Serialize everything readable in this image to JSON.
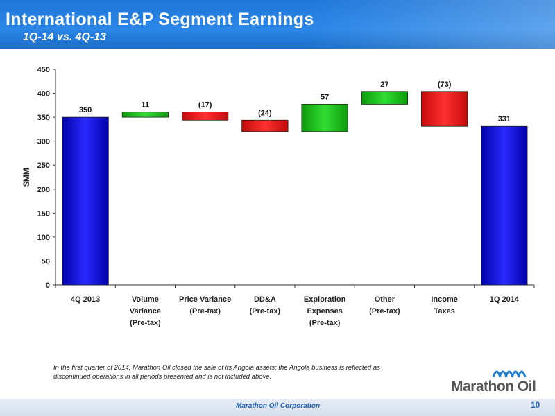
{
  "header": {
    "title": "International E&P Segment Earnings",
    "subtitle": "1Q-14 vs. 4Q-13"
  },
  "chart_data": {
    "type": "waterfall",
    "ylabel": "$MM",
    "ylim": [
      0,
      450
    ],
    "yticks": [
      0,
      50,
      100,
      150,
      200,
      250,
      300,
      350,
      400,
      450
    ],
    "grid": false,
    "categories": [
      [
        "4Q 2013"
      ],
      [
        "Volume",
        "Variance",
        "(Pre-tax)"
      ],
      [
        "Price Variance",
        "(Pre-tax)"
      ],
      [
        "DD&A",
        "(Pre-tax)"
      ],
      [
        "Exploration",
        "Expenses",
        "(Pre-tax)"
      ],
      [
        "Other",
        "(Pre-tax)"
      ],
      [
        "Income",
        "Taxes"
      ],
      [
        "1Q 2014"
      ]
    ],
    "bars": [
      {
        "kind": "total",
        "start": 0,
        "end": 350,
        "label": "350"
      },
      {
        "kind": "increase",
        "start": 350,
        "end": 361,
        "label": "11"
      },
      {
        "kind": "decrease",
        "start": 361,
        "end": 344,
        "label": "(17)"
      },
      {
        "kind": "decrease",
        "start": 344,
        "end": 320,
        "label": "(24)"
      },
      {
        "kind": "increase",
        "start": 320,
        "end": 377,
        "label": "57"
      },
      {
        "kind": "increase",
        "start": 377,
        "end": 404,
        "label": "27"
      },
      {
        "kind": "decrease",
        "start": 404,
        "end": 331,
        "label": "(73)"
      },
      {
        "kind": "total",
        "start": 0,
        "end": 331,
        "label": "331"
      }
    ],
    "colors": {
      "total": "#0a0acc",
      "increase": "#11b411",
      "decrease": "#e01010"
    }
  },
  "footnote": "In the first quarter of 2014, Marathon Oil closed the sale of its Angola assets; the Angola business is reflected as discontinued operations in all periods presented and is not included above.",
  "logo_text": "Marathon Oil",
  "footer": {
    "company": "Marathon Oil Corporation",
    "page_number": "10"
  }
}
